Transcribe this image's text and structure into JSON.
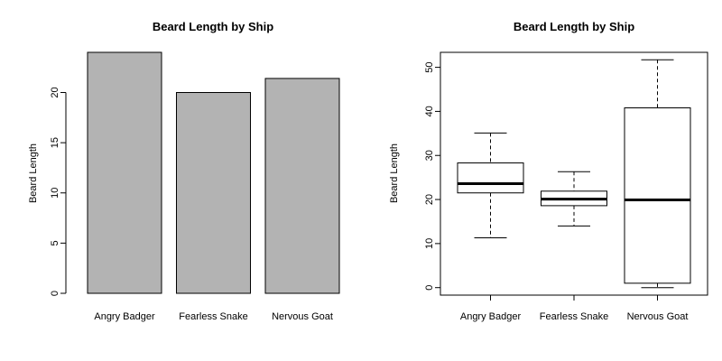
{
  "chart_data": [
    {
      "type": "bar",
      "title": "Beard Length by Ship",
      "xlabel": "",
      "ylabel": "Beard Length",
      "categories": [
        "Angry Badger",
        "Fearless Snake",
        "Nervous Goat"
      ],
      "values": [
        24.0,
        20.0,
        21.4
      ],
      "ylim": [
        0,
        24
      ],
      "yticks": [
        0,
        5,
        10,
        15,
        20
      ],
      "bar_color": "#b3b3b3",
      "grid": false,
      "legend": "none"
    },
    {
      "type": "box",
      "title": "Beard Length by Ship",
      "xlabel": "",
      "ylabel": "Beard Length",
      "categories": [
        "Angry Badger",
        "Fearless Snake",
        "Nervous Goat"
      ],
      "boxes": [
        {
          "min": 11.3,
          "q1": 21.5,
          "median": 23.6,
          "q3": 28.3,
          "max": 35.1
        },
        {
          "min": 14.0,
          "q1": 18.6,
          "median": 20.1,
          "q3": 21.9,
          "max": 26.3
        },
        {
          "min": 0.0,
          "q1": 1.0,
          "median": 19.9,
          "q3": 40.8,
          "max": 51.7
        }
      ],
      "ylim": [
        -1.7,
        53.4
      ],
      "yticks": [
        0,
        10,
        20,
        30,
        40,
        50
      ],
      "grid": false,
      "legend": "none"
    }
  ]
}
